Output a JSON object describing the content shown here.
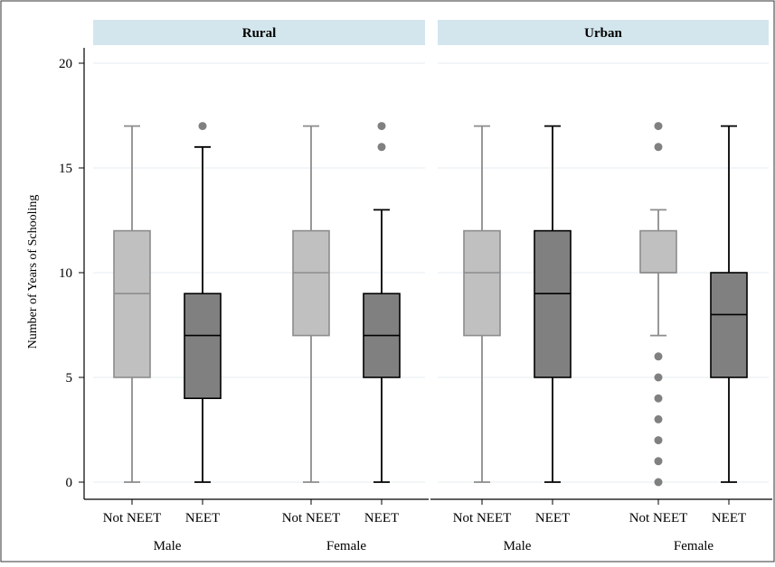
{
  "chart_data": {
    "type": "boxplot",
    "ylabel": "Number of Years of Schooling",
    "ylim": [
      0,
      20
    ],
    "yticks": [
      0,
      5,
      10,
      15,
      20
    ],
    "grid": "horizontal",
    "colors": {
      "not_neet_fill": "#c0c0c0",
      "not_neet_line": "#8c8c8c",
      "neet_fill": "#808080",
      "neet_line": "#000000",
      "outlier": "#808080",
      "strip_fill": "#d3e6ed",
      "grid": "#e6eef2"
    },
    "panels": [
      {
        "title": "Rural",
        "groups": [
          {
            "label": "Male",
            "boxes": [
              {
                "category": "Not NEET",
                "min": 0,
                "q1": 5,
                "median": 9,
                "q3": 12,
                "max": 17,
                "outliers": []
              },
              {
                "category": "NEET",
                "min": 0,
                "q1": 4,
                "median": 7,
                "q3": 9,
                "max": 16,
                "outliers": [
                  17
                ]
              }
            ]
          },
          {
            "label": "Female",
            "boxes": [
              {
                "category": "Not NEET",
                "min": 0,
                "q1": 7,
                "median": 10,
                "q3": 12,
                "max": 17,
                "outliers": []
              },
              {
                "category": "NEET",
                "min": 0,
                "q1": 5,
                "median": 7,
                "q3": 9,
                "max": 13,
                "outliers": [
                  16,
                  17
                ]
              }
            ]
          }
        ]
      },
      {
        "title": "Urban",
        "groups": [
          {
            "label": "Male",
            "boxes": [
              {
                "category": "Not NEET",
                "min": 0,
                "q1": 7,
                "median": 10,
                "q3": 12,
                "max": 17,
                "outliers": []
              },
              {
                "category": "NEET",
                "min": 0,
                "q1": 5,
                "median": 9,
                "q3": 12,
                "max": 17,
                "outliers": []
              }
            ]
          },
          {
            "label": "Female",
            "boxes": [
              {
                "category": "Not NEET",
                "min": 7,
                "q1": 10,
                "median": 10,
                "q3": 12,
                "max": 13,
                "outliers": [
                  0,
                  1,
                  2,
                  3,
                  4,
                  5,
                  6,
                  16,
                  17
                ]
              },
              {
                "category": "NEET",
                "min": 0,
                "q1": 5,
                "median": 8,
                "q3": 10,
                "max": 17,
                "outliers": []
              }
            ]
          }
        ]
      }
    ]
  }
}
